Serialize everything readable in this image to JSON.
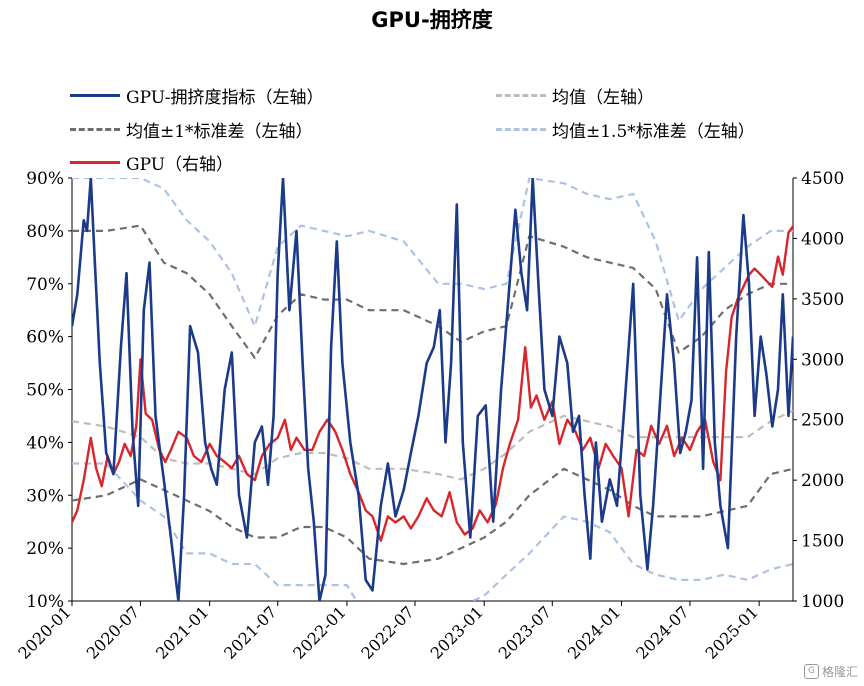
{
  "chart_data": {
    "type": "line",
    "title": "GPU-拥挤度",
    "x_ticks": [
      "2020-01",
      "2020-07",
      "2021-01",
      "2021-07",
      "2022-01",
      "2022-07",
      "2023-01",
      "2023-07",
      "2024-01",
      "2024-07",
      "2025-01"
    ],
    "x_start": "2020-01",
    "x_end": "2025-04",
    "left_axis": {
      "min": 10,
      "max": 90,
      "ticks": [
        "10%",
        "20%",
        "30%",
        "40%",
        "50%",
        "60%",
        "70%",
        "80%",
        "90%"
      ]
    },
    "right_axis": {
      "min": 1000,
      "max": 4500,
      "ticks": [
        "1000",
        "1500",
        "2000",
        "2500",
        "3000",
        "3500",
        "4000",
        "4500"
      ]
    },
    "legend": [
      {
        "key": "crowding",
        "label": "GPU-拥挤度指标（左轴）"
      },
      {
        "key": "mean",
        "label": "均值（左轴）"
      },
      {
        "key": "band1",
        "label": "均值±1*标准差（左轴）"
      },
      {
        "key": "band15",
        "label": "均值±1.5*标准差（左轴）"
      },
      {
        "key": "gpu",
        "label": "GPU（右轴）"
      }
    ],
    "colors": {
      "crowding": "#1c3a8a",
      "mean": "#bdbdbd",
      "band1": "#6e6e6e",
      "band15": "#aec3e3",
      "gpu": "#d8262b"
    },
    "series": [
      {
        "key": "crowding",
        "axis": "left",
        "x": [
          "2020-01-01",
          "2020-01-15",
          "2020-02-01",
          "2020-02-10",
          "2020-02-20",
          "2020-03-01",
          "2020-03-15",
          "2020-04-01",
          "2020-04-20",
          "2020-05-10",
          "2020-05-25",
          "2020-06-10",
          "2020-06-25",
          "2020-07-10",
          "2020-07-25",
          "2020-08-10",
          "2020-09-01",
          "2020-09-20",
          "2020-10-10",
          "2020-10-25",
          "2020-11-10",
          "2020-12-01",
          "2020-12-20",
          "2021-01-05",
          "2021-01-20",
          "2021-02-10",
          "2021-03-01",
          "2021-03-20",
          "2021-04-10",
          "2021-05-01",
          "2021-05-20",
          "2021-06-05",
          "2021-06-20",
          "2021-07-01",
          "2021-07-15",
          "2021-08-01",
          "2021-08-20",
          "2021-09-05",
          "2021-09-20",
          "2021-10-05",
          "2021-10-20",
          "2021-11-05",
          "2021-11-20",
          "2021-12-05",
          "2021-12-20",
          "2022-01-10",
          "2022-02-01",
          "2022-02-20",
          "2022-03-10",
          "2022-04-01",
          "2022-04-20",
          "2022-05-10",
          "2022-06-01",
          "2022-06-20",
          "2022-07-10",
          "2022-08-01",
          "2022-08-20",
          "2022-09-05",
          "2022-09-20",
          "2022-10-05",
          "2022-10-20",
          "2022-11-05",
          "2022-11-25",
          "2022-12-15",
          "2023-01-05",
          "2023-01-25",
          "2023-02-15",
          "2023-03-05",
          "2023-03-25",
          "2023-04-10",
          "2023-04-25",
          "2023-05-10",
          "2023-05-25",
          "2023-06-10",
          "2023-07-01",
          "2023-07-20",
          "2023-08-10",
          "2023-08-25",
          "2023-09-10",
          "2023-09-25",
          "2023-10-10",
          "2023-10-25",
          "2023-11-10",
          "2023-12-01",
          "2023-12-20",
          "2024-01-10",
          "2024-02-01",
          "2024-02-20",
          "2024-03-10",
          "2024-03-25",
          "2024-04-10",
          "2024-05-01",
          "2024-05-20",
          "2024-06-05",
          "2024-06-20",
          "2024-07-05",
          "2024-07-20",
          "2024-08-05",
          "2024-08-20",
          "2024-09-05",
          "2024-09-20",
          "2024-10-10",
          "2024-11-01",
          "2024-11-20",
          "2024-12-05",
          "2024-12-20",
          "2025-01-05",
          "2025-01-20",
          "2025-02-05",
          "2025-02-20",
          "2025-03-05",
          "2025-03-20",
          "2025-04-01"
        ],
        "y": [
          62,
          68,
          82,
          80,
          90,
          75,
          55,
          38,
          34,
          58,
          72,
          42,
          28,
          65,
          74,
          45,
          33,
          22,
          10,
          30,
          62,
          57,
          40,
          35,
          32,
          50,
          57,
          30,
          22,
          40,
          43,
          32,
          45,
          72,
          90,
          65,
          80,
          55,
          35,
          25,
          10,
          15,
          58,
          78,
          55,
          40,
          30,
          14,
          12,
          28,
          36,
          26,
          31,
          38,
          45,
          55,
          58,
          65,
          40,
          55,
          85,
          40,
          22,
          45,
          47,
          25,
          50,
          66,
          84,
          72,
          65,
          90,
          70,
          50,
          45,
          60,
          55,
          42,
          45,
          30,
          18,
          40,
          25,
          33,
          28,
          48,
          70,
          30,
          16,
          28,
          45,
          68,
          55,
          38,
          42,
          48,
          75,
          35,
          76,
          40,
          28,
          20,
          60,
          83,
          70,
          45,
          60,
          53,
          43,
          50,
          68,
          45,
          60
        ]
      },
      {
        "key": "gpu",
        "axis": "right",
        "x": [
          "2020-01-01",
          "2020-01-15",
          "2020-02-01",
          "2020-02-20",
          "2020-03-05",
          "2020-03-20",
          "2020-04-05",
          "2020-04-20",
          "2020-05-05",
          "2020-05-20",
          "2020-06-05",
          "2020-06-20",
          "2020-07-01",
          "2020-07-15",
          "2020-08-01",
          "2020-08-20",
          "2020-09-05",
          "2020-09-20",
          "2020-10-10",
          "2020-11-01",
          "2020-11-20",
          "2020-12-10",
          "2021-01-01",
          "2021-01-20",
          "2021-02-10",
          "2021-03-01",
          "2021-03-20",
          "2021-04-10",
          "2021-05-01",
          "2021-05-20",
          "2021-06-10",
          "2021-07-01",
          "2021-07-20",
          "2021-08-05",
          "2021-08-20",
          "2021-09-10",
          "2021-10-01",
          "2021-10-20",
          "2021-11-10",
          "2021-12-01",
          "2021-12-20",
          "2022-01-10",
          "2022-02-01",
          "2022-02-20",
          "2022-03-10",
          "2022-04-01",
          "2022-04-20",
          "2022-05-10",
          "2022-06-01",
          "2022-06-20",
          "2022-07-10",
          "2022-08-01",
          "2022-08-20",
          "2022-09-10",
          "2022-10-01",
          "2022-10-20",
          "2022-11-10",
          "2022-12-01",
          "2022-12-20",
          "2023-01-10",
          "2023-02-01",
          "2023-02-20",
          "2023-03-10",
          "2023-04-01",
          "2023-04-20",
          "2023-05-05",
          "2023-05-20",
          "2023-06-10",
          "2023-07-01",
          "2023-07-20",
          "2023-08-10",
          "2023-09-01",
          "2023-09-20",
          "2023-10-10",
          "2023-11-01",
          "2023-11-20",
          "2023-12-10",
          "2024-01-01",
          "2024-01-20",
          "2024-02-10",
          "2024-03-01",
          "2024-03-20",
          "2024-04-10",
          "2024-05-01",
          "2024-05-20",
          "2024-06-10",
          "2024-07-01",
          "2024-07-20",
          "2024-08-10",
          "2024-09-01",
          "2024-09-20",
          "2024-10-05",
          "2024-10-20",
          "2024-11-05",
          "2024-11-20",
          "2024-12-05",
          "2024-12-20",
          "2025-01-05",
          "2025-01-20",
          "2025-02-05",
          "2025-02-20",
          "2025-03-05",
          "2025-03-20",
          "2025-04-01"
        ],
        "y": [
          1650,
          1750,
          2000,
          2350,
          2100,
          1950,
          2200,
          2050,
          2150,
          2300,
          2200,
          2450,
          3000,
          2550,
          2500,
          2250,
          2150,
          2250,
          2400,
          2350,
          2200,
          2150,
          2300,
          2200,
          2150,
          2100,
          2200,
          2050,
          2000,
          2200,
          2300,
          2350,
          2500,
          2250,
          2350,
          2250,
          2250,
          2400,
          2500,
          2400,
          2250,
          2050,
          1900,
          1750,
          1700,
          1500,
          1700,
          1650,
          1700,
          1600,
          1700,
          1850,
          1750,
          1700,
          1900,
          1650,
          1550,
          1600,
          1750,
          1650,
          1800,
          2100,
          2300,
          2500,
          3100,
          2600,
          2700,
          2500,
          2650,
          2300,
          2500,
          2400,
          2250,
          2350,
          2100,
          2300,
          2200,
          2100,
          1700,
          2250,
          2200,
          2450,
          2300,
          2450,
          2200,
          2350,
          2250,
          2400,
          2500,
          2150,
          2000,
          2900,
          3350,
          3500,
          3600,
          3700,
          3750,
          3700,
          3650,
          3600,
          3850,
          3700,
          4050,
          4100
        ]
      },
      {
        "key": "mean",
        "axis": "left",
        "x": [
          "2020-01-01",
          "2020-04-01",
          "2020-07-01",
          "2020-09-01",
          "2020-11-01",
          "2021-01-01",
          "2021-03-01",
          "2021-05-01",
          "2021-07-01",
          "2021-09-01",
          "2021-11-01",
          "2022-01-01",
          "2022-03-01",
          "2022-06-01",
          "2022-09-01",
          "2022-11-01",
          "2023-01-01",
          "2023-03-01",
          "2023-05-01",
          "2023-08-01",
          "2023-10-01",
          "2023-12-01",
          "2024-02-01",
          "2024-04-01",
          "2024-06-01",
          "2024-08-01",
          "2024-10-01",
          "2024-12-01",
          "2025-02-01",
          "2025-04-01"
        ],
        "y": [
          44,
          43,
          41,
          37,
          36,
          36,
          35,
          34,
          37,
          38,
          38,
          37,
          35,
          35,
          34,
          33,
          35,
          38,
          42,
          45,
          44,
          43,
          41,
          41,
          41,
          41,
          41,
          41,
          44,
          46
        ]
      },
      {
        "key": "band1_up",
        "axis": "left",
        "x": [
          "2020-01-01",
          "2020-04-01",
          "2020-07-01",
          "2020-09-01",
          "2020-11-01",
          "2021-01-01",
          "2021-03-01",
          "2021-05-01",
          "2021-07-01",
          "2021-09-01",
          "2021-11-01",
          "2022-01-01",
          "2022-03-01",
          "2022-06-01",
          "2022-09-01",
          "2022-11-01",
          "2023-01-01",
          "2023-03-01",
          "2023-05-01",
          "2023-08-01",
          "2023-10-01",
          "2023-12-01",
          "2024-02-01",
          "2024-04-01",
          "2024-06-01",
          "2024-08-01",
          "2024-10-01",
          "2024-12-01",
          "2025-02-01",
          "2025-04-01"
        ],
        "y": [
          80,
          80,
          81,
          74,
          72,
          68,
          62,
          56,
          64,
          68,
          67,
          67,
          65,
          65,
          62,
          59,
          61,
          62,
          79,
          77,
          75,
          74,
          73,
          69,
          57,
          60,
          65,
          68,
          70,
          70
        ]
      },
      {
        "key": "band1_low",
        "axis": "left",
        "x": [
          "2020-01-01",
          "2020-04-01",
          "2020-07-01",
          "2020-09-01",
          "2020-11-01",
          "2021-01-01",
          "2021-03-01",
          "2021-05-01",
          "2021-07-01",
          "2021-09-01",
          "2021-11-01",
          "2022-01-01",
          "2022-03-01",
          "2022-06-01",
          "2022-09-01",
          "2022-11-01",
          "2023-01-01",
          "2023-03-01",
          "2023-05-01",
          "2023-08-01",
          "2023-10-01",
          "2023-12-01",
          "2024-02-01",
          "2024-04-01",
          "2024-06-01",
          "2024-08-01",
          "2024-10-01",
          "2024-12-01",
          "2025-02-01",
          "2025-04-01"
        ],
        "y": [
          29,
          30,
          33,
          31,
          29,
          27,
          24,
          22,
          22,
          24,
          24,
          22,
          18,
          17,
          18,
          20,
          22,
          25,
          30,
          35,
          33,
          31,
          28,
          26,
          26,
          26,
          27,
          28,
          34,
          35
        ]
      },
      {
        "key": "band15_up",
        "axis": "left",
        "x": [
          "2020-01-01",
          "2020-04-01",
          "2020-07-01",
          "2020-09-01",
          "2020-11-01",
          "2021-01-01",
          "2021-03-01",
          "2021-05-01",
          "2021-07-01",
          "2021-09-01",
          "2021-11-01",
          "2022-01-01",
          "2022-03-01",
          "2022-06-01",
          "2022-09-01",
          "2022-11-01",
          "2023-01-01",
          "2023-03-01",
          "2023-05-01",
          "2023-08-01",
          "2023-10-01",
          "2023-12-01",
          "2024-02-01",
          "2024-04-01",
          "2024-06-01",
          "2024-08-01",
          "2024-10-01",
          "2024-12-01",
          "2025-02-01",
          "2025-04-01"
        ],
        "y": [
          90,
          90,
          90,
          88,
          82,
          78,
          72,
          62,
          77,
          81,
          80,
          79,
          80,
          78,
          70,
          70,
          69,
          70,
          90,
          89,
          87,
          86,
          87,
          78,
          63,
          69,
          73,
          77,
          80,
          80
        ]
      },
      {
        "key": "band15_low",
        "axis": "left",
        "x": [
          "2020-01-01",
          "2020-04-01",
          "2020-07-01",
          "2020-09-01",
          "2020-11-01",
          "2021-01-01",
          "2021-03-01",
          "2021-05-01",
          "2021-07-01",
          "2021-09-01",
          "2021-11-01",
          "2022-01-01",
          "2022-03-01",
          "2022-06-01",
          "2022-09-01",
          "2022-11-01",
          "2023-01-01",
          "2023-03-01",
          "2023-05-01",
          "2023-08-01",
          "2023-10-01",
          "2023-12-01",
          "2024-02-01",
          "2024-04-01",
          "2024-06-01",
          "2024-08-01",
          "2024-10-01",
          "2024-12-01",
          "2025-02-01",
          "2025-04-01"
        ],
        "y": [
          36,
          36,
          29,
          26,
          19,
          19,
          17,
          17,
          13,
          13,
          13,
          13,
          6,
          5,
          7,
          9,
          11,
          15,
          19,
          26,
          25,
          23,
          17,
          15,
          14,
          14,
          15,
          14,
          16,
          17
        ]
      }
    ]
  },
  "watermark": {
    "text": "格隆汇",
    "icon": "G"
  }
}
